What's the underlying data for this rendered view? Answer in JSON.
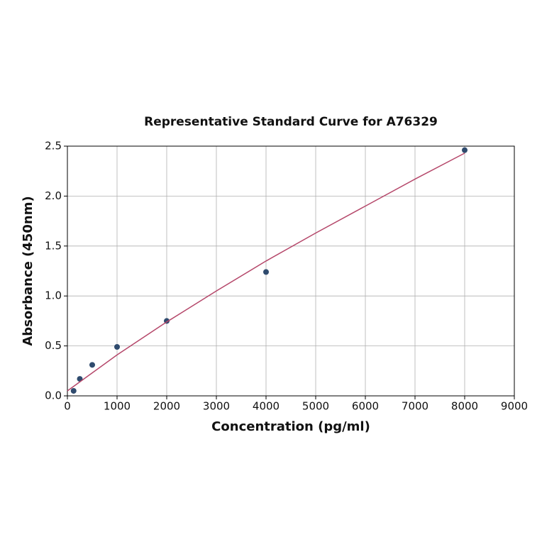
{
  "chart_data": {
    "type": "scatter",
    "title": "Representative Standard Curve for A76329",
    "x_label": "Concentration (pg/ml)",
    "y_label": "Absorbance (450nm)",
    "xlim": [
      0,
      9000
    ],
    "xticks": [
      0,
      1000,
      2000,
      3000,
      4000,
      5000,
      6000,
      7000,
      8000,
      9000
    ],
    "ylim": [
      0,
      2.5
    ],
    "yticks": [
      {
        "value": 0,
        "label": "0.0"
      },
      0.5,
      {
        "value": 1,
        "label": "1.0"
      },
      1.5,
      {
        "value": 2,
        "label": "2.0"
      },
      2.5
    ],
    "grid": true,
    "series": [
      {
        "type": "scatter",
        "color": "#2f4b6e",
        "x": [
          125,
          250,
          500,
          1000,
          2000,
          4000,
          8000
        ],
        "values": [
          0.05,
          0.17,
          0.31,
          0.49,
          0.75,
          1.24,
          2.46
        ]
      },
      {
        "type": "line",
        "color": "#b5476a",
        "x": [
          0,
          1000,
          2000,
          3000,
          4000,
          5000,
          6000,
          7000,
          8000
        ],
        "values": [
          0.05,
          0.41,
          0.74,
          1.05,
          1.35,
          1.63,
          1.9,
          2.17,
          2.43
        ]
      }
    ]
  }
}
